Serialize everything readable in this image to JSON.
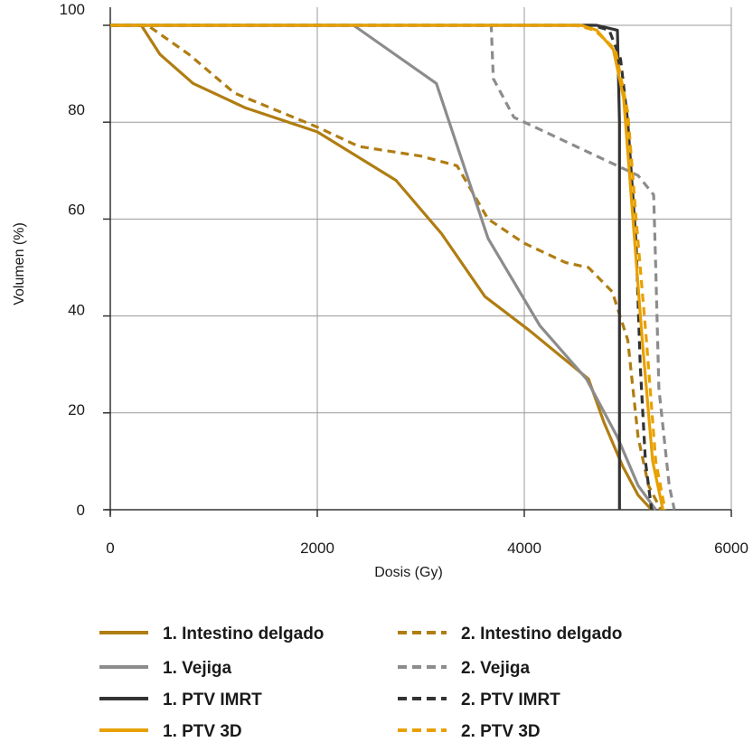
{
  "chart_data": {
    "type": "line",
    "title": "",
    "xlabel": "Dosis (Gy)",
    "ylabel": "Volumen (%)",
    "xlim": [
      0,
      6000
    ],
    "ylim": [
      0,
      100
    ],
    "x_ticks": [
      0,
      2000,
      4000,
      6000
    ],
    "y_ticks": [
      {
        "value": 100,
        "label": "100"
      },
      {
        "value": 80,
        "label": "80"
      },
      {
        "value": 60,
        "label": "60"
      },
      {
        "value": 40,
        "label": "40"
      },
      {
        "value": 20,
        "label": "20"
      },
      {
        "value": 0,
        "label": "0"
      }
    ],
    "grid": true,
    "legend_position": "bottom",
    "series": [
      {
        "name": "1. Intestino delgado",
        "color": "#b07d12",
        "dash": false,
        "points": [
          [
            0,
            100
          ],
          [
            300,
            100
          ],
          [
            480,
            94
          ],
          [
            800,
            88
          ],
          [
            1300,
            83
          ],
          [
            2000,
            78
          ],
          [
            2760,
            68
          ],
          [
            3200,
            57
          ],
          [
            3620,
            44
          ],
          [
            4050,
            37
          ],
          [
            4620,
            27
          ],
          [
            4770,
            18
          ],
          [
            4950,
            9
          ],
          [
            5100,
            3
          ],
          [
            5230,
            0
          ]
        ]
      },
      {
        "name": "2. Intestino delgado",
        "color": "#b07d12",
        "dash": true,
        "points": [
          [
            0,
            100
          ],
          [
            360,
            100
          ],
          [
            760,
            94
          ],
          [
            1200,
            86
          ],
          [
            2000,
            79
          ],
          [
            2400,
            75
          ],
          [
            3000,
            73
          ],
          [
            3350,
            71
          ],
          [
            3650,
            60
          ],
          [
            4000,
            55
          ],
          [
            4400,
            51
          ],
          [
            4620,
            50
          ],
          [
            4850,
            45
          ],
          [
            5000,
            35
          ],
          [
            5100,
            15
          ],
          [
            5200,
            5
          ],
          [
            5320,
            0
          ]
        ]
      },
      {
        "name": "1. Vejiga",
        "color": "#8c8c8c",
        "dash": false,
        "points": [
          [
            0,
            100
          ],
          [
            2350,
            100
          ],
          [
            3150,
            88
          ],
          [
            3650,
            56
          ],
          [
            4150,
            38
          ],
          [
            4600,
            27
          ],
          [
            4900,
            15
          ],
          [
            5100,
            5
          ],
          [
            5270,
            0
          ]
        ]
      },
      {
        "name": "2. Vejiga",
        "color": "#8c8c8c",
        "dash": true,
        "points": [
          [
            0,
            100
          ],
          [
            3680,
            100
          ],
          [
            3700,
            89
          ],
          [
            3900,
            81
          ],
          [
            4300,
            77
          ],
          [
            4800,
            72
          ],
          [
            5100,
            69
          ],
          [
            5250,
            65
          ],
          [
            5270,
            50
          ],
          [
            5300,
            25
          ],
          [
            5400,
            5
          ],
          [
            5450,
            0
          ]
        ]
      },
      {
        "name": "1. PTV IMRT",
        "color": "#333333",
        "dash": false,
        "points": [
          [
            0,
            100
          ],
          [
            4700,
            100
          ],
          [
            4900,
            99
          ],
          [
            4920,
            80
          ],
          [
            4920,
            30
          ],
          [
            4920,
            0
          ]
        ]
      },
      {
        "name": "2. PTV IMRT",
        "color": "#333333",
        "dash": true,
        "points": [
          [
            0,
            100
          ],
          [
            4660,
            100
          ],
          [
            4820,
            99
          ],
          [
            4930,
            93
          ],
          [
            5000,
            80
          ],
          [
            5080,
            55
          ],
          [
            5120,
            30
          ],
          [
            5170,
            10
          ],
          [
            5230,
            0
          ]
        ]
      },
      {
        "name": "1. PTV 3D",
        "color": "#e8a000",
        "dash": false,
        "points": [
          [
            0,
            100
          ],
          [
            4550,
            100
          ],
          [
            4700,
            99
          ],
          [
            4860,
            95
          ],
          [
            4960,
            85
          ],
          [
            5050,
            60
          ],
          [
            5140,
            35
          ],
          [
            5240,
            10
          ],
          [
            5340,
            0
          ]
        ]
      },
      {
        "name": "2. PTV 3D",
        "color": "#e8a000",
        "dash": true,
        "points": [
          [
            0,
            100
          ],
          [
            4500,
            100
          ],
          [
            4680,
            99
          ],
          [
            4880,
            95
          ],
          [
            5000,
            82
          ],
          [
            5080,
            60
          ],
          [
            5180,
            35
          ],
          [
            5270,
            10
          ],
          [
            5360,
            0
          ]
        ]
      }
    ],
    "legend": [
      {
        "label": "1. Intestino delgado",
        "color": "#b07d12",
        "dash": false
      },
      {
        "label": "2. Intestino delgado",
        "color": "#b07d12",
        "dash": true
      },
      {
        "label": "1. Vejiga",
        "color": "#8c8c8c",
        "dash": false
      },
      {
        "label": "2. Vejiga",
        "color": "#8c8c8c",
        "dash": true
      },
      {
        "label": "1. PTV IMRT",
        "color": "#333333",
        "dash": false
      },
      {
        "label": "2. PTV IMRT",
        "color": "#333333",
        "dash": true
      },
      {
        "label": "1. PTV 3D",
        "color": "#e8a000",
        "dash": false
      },
      {
        "label": "2. PTV 3D",
        "color": "#e8a000",
        "dash": true
      }
    ]
  }
}
